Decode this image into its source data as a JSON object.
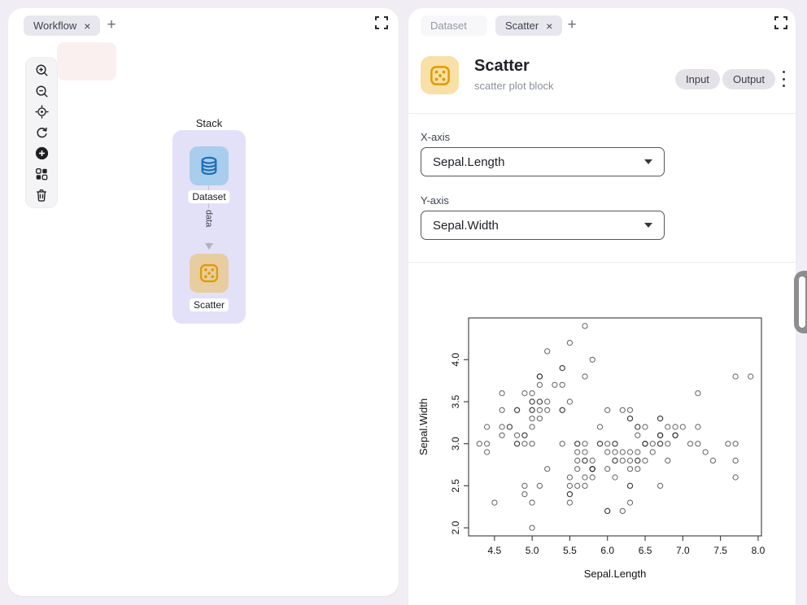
{
  "left_panel": {
    "tabs": [
      {
        "label": "Workflow",
        "close": "×"
      }
    ],
    "new_tab_label": "+",
    "toolbar": {
      "items": [
        "zoom-in",
        "zoom-out",
        "locate",
        "reset-view",
        "add-block",
        "auto-layout",
        "delete"
      ]
    },
    "canvas": {
      "group_label": "Stack",
      "nodes": [
        {
          "label": "Dataset",
          "icon": "database"
        },
        {
          "label": "Scatter",
          "icon": "scatter-dice"
        }
      ],
      "edge": {
        "label": "data"
      }
    }
  },
  "right_panel": {
    "tabs": [
      {
        "label": "Dataset",
        "active": false
      },
      {
        "label": "Scatter",
        "active": true,
        "close": "×"
      }
    ],
    "new_tab_label": "+",
    "header": {
      "title": "Scatter",
      "subtitle": "scatter plot block",
      "input_button": "Input",
      "output_button": "Output"
    },
    "form": {
      "x_axis_label": "X-axis",
      "x_axis_value": "Sepal.Length",
      "y_axis_label": "Y-axis",
      "y_axis_value": "Sepal.Width"
    }
  },
  "colors": {
    "page_bg": "#f0eef4",
    "group_bg": "#e3e1f8",
    "dataset_node_bg": "#a9cdec",
    "dataset_icon": "#1c6fb8",
    "scatter_node_bg": "#e8cda0",
    "scatter_icon": "#e09b00",
    "header_icon_bg": "#f8e0a6",
    "highlight_rect": "#fbf0f0"
  },
  "chart_data": {
    "type": "scatter",
    "title": "",
    "xlabel": "Sepal.Length",
    "ylabel": "Sepal.Width",
    "xlim": [
      4.156,
      8.044
    ],
    "ylim": [
      1.904,
      4.496
    ],
    "xticks": [
      4.5,
      5.0,
      5.5,
      6.0,
      6.5,
      7.0,
      7.5,
      8.0
    ],
    "yticks": [
      2.0,
      2.5,
      3.0,
      3.5,
      4.0
    ],
    "grid": false,
    "marker": "open-circle",
    "x": [
      5.1,
      4.9,
      4.7,
      4.6,
      5.0,
      5.4,
      4.6,
      5.0,
      4.4,
      4.9,
      5.4,
      4.8,
      4.8,
      4.3,
      5.8,
      5.7,
      5.4,
      5.1,
      5.7,
      5.1,
      5.4,
      5.1,
      4.6,
      5.1,
      4.8,
      5.0,
      5.0,
      5.2,
      5.2,
      4.7,
      4.8,
      5.4,
      5.2,
      5.5,
      4.9,
      5.0,
      5.5,
      4.9,
      4.4,
      5.1,
      5.0,
      4.5,
      4.4,
      5.0,
      5.1,
      4.8,
      5.1,
      4.6,
      5.3,
      5.0,
      7.0,
      6.4,
      6.9,
      5.5,
      6.5,
      5.7,
      6.3,
      4.9,
      6.6,
      5.2,
      5.0,
      5.9,
      6.0,
      6.1,
      5.6,
      6.7,
      5.6,
      5.8,
      6.2,
      5.6,
      5.9,
      6.1,
      6.3,
      6.1,
      6.4,
      6.6,
      6.8,
      6.7,
      6.0,
      5.7,
      5.5,
      5.5,
      5.8,
      6.0,
      5.4,
      6.0,
      6.7,
      6.3,
      5.6,
      5.5,
      5.5,
      6.1,
      5.8,
      5.0,
      5.6,
      5.7,
      5.7,
      6.2,
      5.1,
      5.7,
      6.3,
      5.8,
      7.1,
      6.3,
      6.5,
      7.6,
      4.9,
      7.3,
      6.7,
      7.2,
      6.5,
      6.4,
      6.8,
      5.7,
      5.8,
      6.4,
      6.5,
      7.7,
      7.7,
      6.0,
      6.9,
      5.6,
      7.7,
      6.3,
      6.7,
      7.2,
      6.2,
      6.1,
      6.4,
      7.2,
      7.4,
      7.9,
      6.4,
      6.3,
      6.1,
      7.7,
      6.3,
      6.4,
      6.0,
      6.9,
      6.7,
      6.9,
      5.8,
      6.8,
      6.7,
      6.7,
      6.3,
      6.5,
      6.2,
      5.9
    ],
    "y": [
      3.5,
      3.0,
      3.2,
      3.1,
      3.6,
      3.9,
      3.4,
      3.4,
      2.9,
      3.1,
      3.7,
      3.4,
      3.0,
      3.0,
      4.0,
      4.4,
      3.9,
      3.5,
      3.8,
      3.8,
      3.4,
      3.7,
      3.6,
      3.3,
      3.4,
      3.0,
      3.4,
      3.5,
      3.4,
      3.2,
      3.1,
      3.4,
      4.1,
      4.2,
      3.1,
      3.2,
      3.5,
      3.6,
      3.0,
      3.4,
      3.5,
      2.3,
      3.2,
      3.5,
      3.8,
      3.0,
      3.8,
      3.2,
      3.7,
      3.3,
      3.2,
      3.2,
      3.1,
      2.3,
      2.8,
      2.8,
      3.3,
      2.4,
      2.9,
      2.7,
      2.0,
      3.0,
      2.2,
      2.9,
      2.9,
      3.1,
      3.0,
      2.7,
      2.2,
      2.5,
      3.2,
      2.8,
      2.5,
      2.8,
      2.9,
      3.0,
      2.8,
      3.0,
      2.9,
      2.6,
      2.4,
      2.4,
      2.7,
      2.7,
      3.0,
      3.4,
      3.1,
      2.3,
      3.0,
      2.5,
      2.6,
      3.0,
      2.6,
      2.3,
      2.7,
      3.0,
      2.9,
      2.9,
      2.5,
      2.8,
      3.3,
      2.7,
      3.0,
      2.9,
      3.0,
      3.0,
      2.5,
      2.9,
      2.5,
      3.6,
      3.2,
      2.7,
      3.0,
      2.5,
      2.8,
      3.2,
      3.0,
      3.8,
      2.6,
      2.2,
      3.2,
      2.8,
      2.8,
      2.7,
      3.3,
      3.2,
      2.8,
      3.0,
      2.8,
      3.0,
      2.8,
      3.8,
      2.8,
      2.8,
      2.6,
      3.0,
      3.4,
      3.1,
      3.0,
      3.1,
      3.1,
      3.1,
      2.7,
      3.2,
      3.3,
      3.0,
      2.5,
      3.0,
      3.4,
      3.0
    ]
  }
}
